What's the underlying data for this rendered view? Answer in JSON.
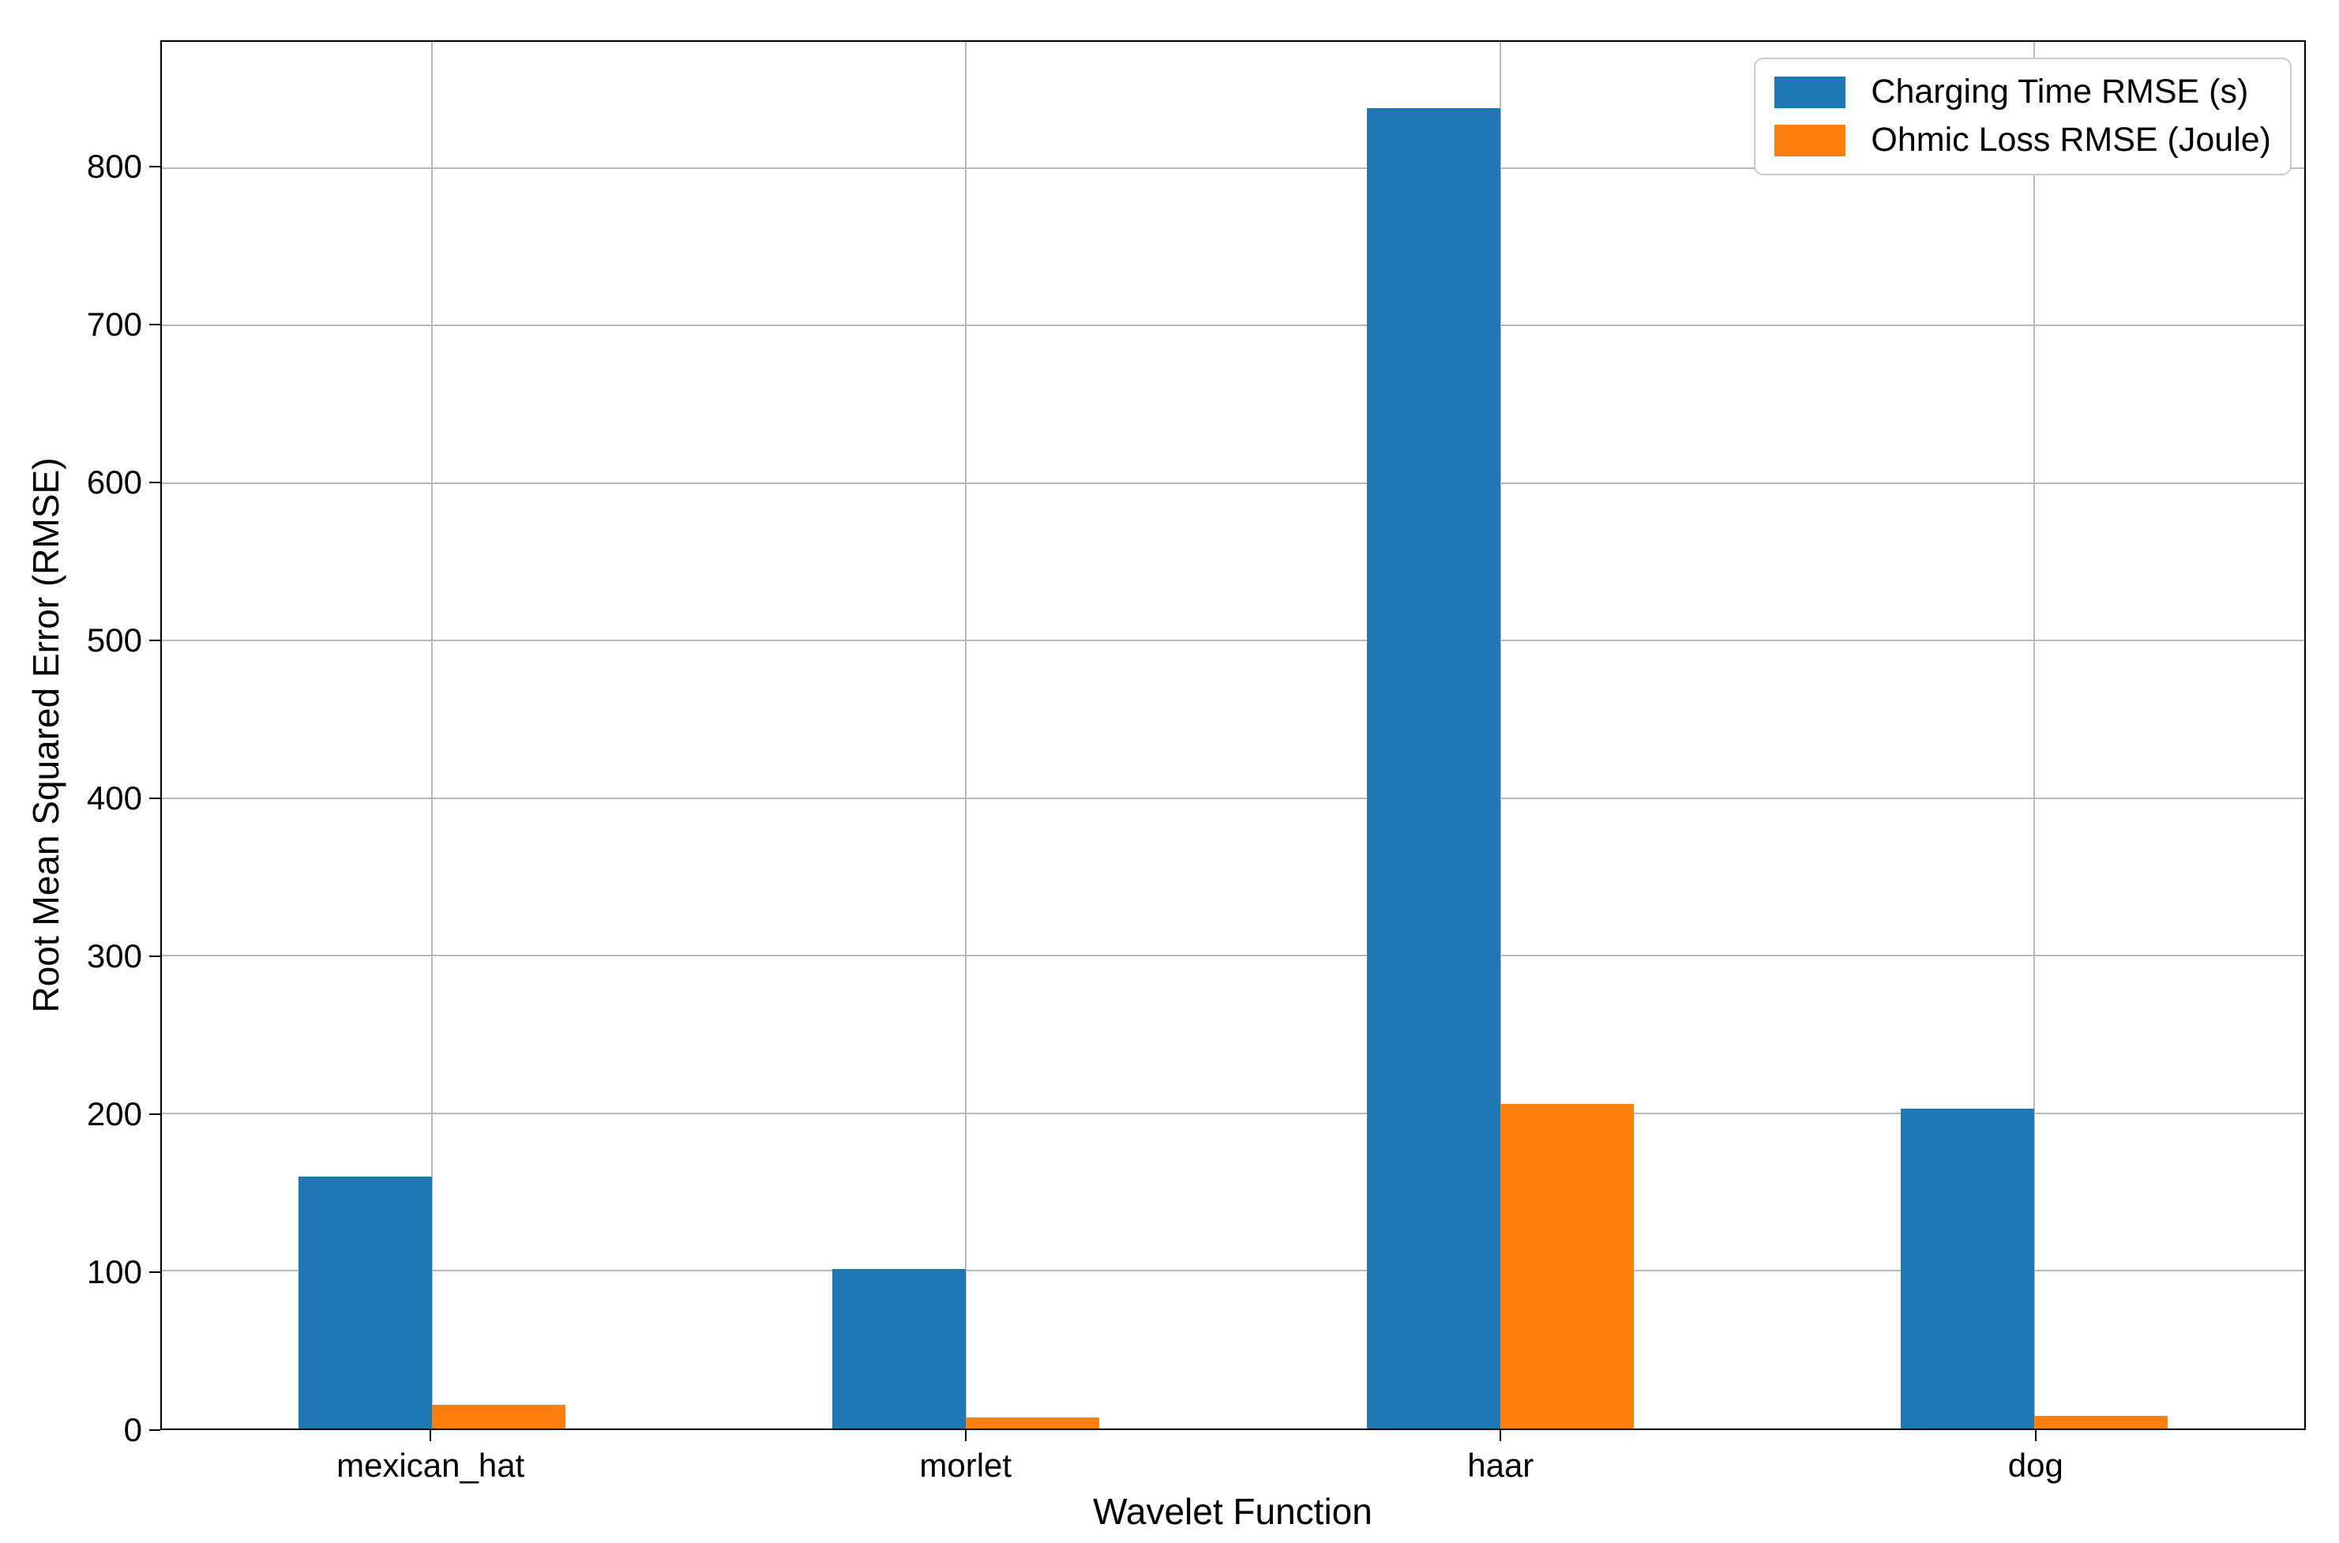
{
  "figure": {
    "background": "#ffffff"
  },
  "chart_data": {
    "type": "bar",
    "title": "",
    "xlabel": "Wavelet Function",
    "ylabel": "Root Mean Squared Error (RMSE)",
    "categories": [
      "mexican_hat",
      "morlet",
      "haar",
      "dog"
    ],
    "series": [
      {
        "name": "Charging Time RMSE (s)",
        "color": "#1f77b4",
        "values": [
          160,
          101,
          838,
          203
        ]
      },
      {
        "name": "Ohmic Loss RMSE (Joule)",
        "color": "#ff7f0e",
        "values": [
          15,
          7,
          206,
          8
        ]
      }
    ],
    "yticks": [
      0,
      100,
      200,
      300,
      400,
      500,
      600,
      700,
      800
    ],
    "ylim": [
      0,
      880
    ],
    "xlim": [
      -0.505,
      3.505
    ],
    "bar_width": 0.25,
    "grid": true,
    "grid_color": "#b8b8b8",
    "spine_color": "#000000",
    "legend_position": "upper right"
  }
}
